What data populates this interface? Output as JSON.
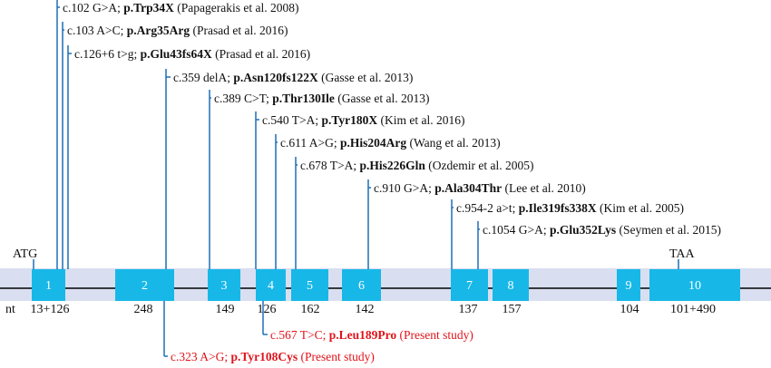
{
  "colors": {
    "exon_fill": "#17b8e8",
    "band_fill": "#d9dff0",
    "line": "#1f6fb6",
    "backbone": "#000000",
    "present_study": "#e0141b",
    "text": "#111111",
    "exon_label": "#ffffff"
  },
  "labels": {
    "start_codon": "ATG",
    "stop_codon": "TAA",
    "nt_prefix": "nt"
  },
  "exons": [
    {
      "number": "1",
      "size": "13+126"
    },
    {
      "number": "2",
      "size": "248"
    },
    {
      "number": "3",
      "size": "149"
    },
    {
      "number": "4",
      "size": "126"
    },
    {
      "number": "5",
      "size": "162"
    },
    {
      "number": "6",
      "size": "142"
    },
    {
      "number": "7",
      "size": "137"
    },
    {
      "number": "8",
      "size": "157"
    },
    {
      "number": "9",
      "size": "104"
    },
    {
      "number": "10",
      "size": "101+490"
    }
  ],
  "variants_above": [
    {
      "nucleotide": "c.102 G>A;",
      "protein": "p.Trp34X",
      "reference": "(Papagerakis et al. 2008)"
    },
    {
      "nucleotide": "c.103 A>C;",
      "protein": "p.Arg35Arg",
      "reference": "(Prasad et al. 2016)"
    },
    {
      "nucleotide": "c.126+6 t>g;",
      "protein": "p.Glu43fs64X",
      "reference": "(Prasad et al. 2016)"
    },
    {
      "nucleotide": "c.359 delA;",
      "protein": "p.Asn120fs122X",
      "reference": "(Gasse et al. 2013)"
    },
    {
      "nucleotide": "c.389 C>T;",
      "protein": "p.Thr130Ile",
      "reference": "(Gasse et al. 2013)"
    },
    {
      "nucleotide": "c.540 T>A;",
      "protein": "p.Tyr180X",
      "reference": "(Kim et al. 2016)"
    },
    {
      "nucleotide": "c.611 A>G;",
      "protein": "p.His204Arg",
      "reference": "(Wang et al. 2013)"
    },
    {
      "nucleotide": "c.678 T>A;",
      "protein": "p.His226Gln",
      "reference": "(Ozdemir et al. 2005)"
    },
    {
      "nucleotide": "c.910 G>A;",
      "protein": "p.Ala304Thr",
      "reference": "(Lee et al. 2010)"
    },
    {
      "nucleotide": "c.954-2 a>t;",
      "protein": "p.Ile319fs338X",
      "reference": "(Kim et al. 2005)"
    },
    {
      "nucleotide": "c.1054 G>A;",
      "protein": "p.Glu352Lys",
      "reference": "(Seymen et al. 2015)"
    }
  ],
  "variants_below": [
    {
      "nucleotide": "c.567 T>C;",
      "protein": "p.Leu189Pro",
      "reference": "(Present study)"
    },
    {
      "nucleotide": "c.323 A>G;",
      "protein": "p.Tyr108Cys",
      "reference": "(Present study)"
    }
  ]
}
